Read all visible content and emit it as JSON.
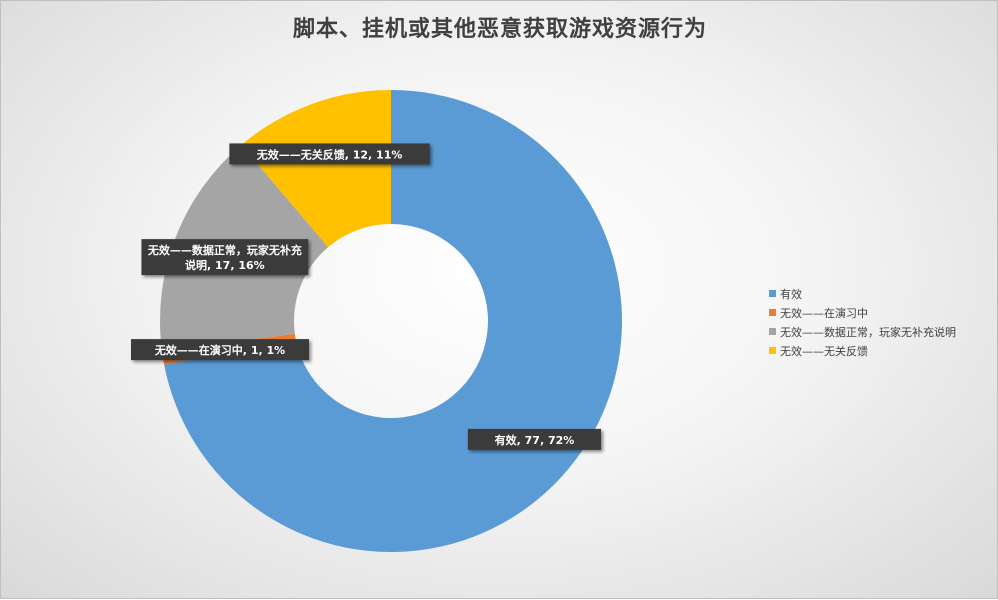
{
  "chart_data": {
    "type": "pie",
    "variant": "donut",
    "title": "脚本、挂机或其他恶意获取游戏资源行为",
    "categories": [
      "有效",
      "无效——在演习中",
      "无效——数据正常，玩家无补充说明",
      "无效——无关反馈"
    ],
    "values": [
      77,
      1,
      17,
      12
    ],
    "percent_labels": [
      "72%",
      "1%",
      "16%",
      "11%"
    ],
    "data_labels": [
      [
        "有效, 77, 72%"
      ],
      [
        "无效——在演习中, 1, 1%"
      ],
      [
        "无效——数据正常，玩家无补充",
        "说明, 17, 16%"
      ],
      [
        "无效——无关反馈, 12, 11%"
      ]
    ],
    "colors": [
      "#5b9bd5",
      "#ed7d31",
      "#a5a5a5",
      "#ffc000"
    ],
    "legend_position": "right",
    "legend_labels": [
      "有效",
      "无效——在演习中",
      "无效——数据正常，玩家无补充说明",
      "无效——无关反馈"
    ]
  }
}
